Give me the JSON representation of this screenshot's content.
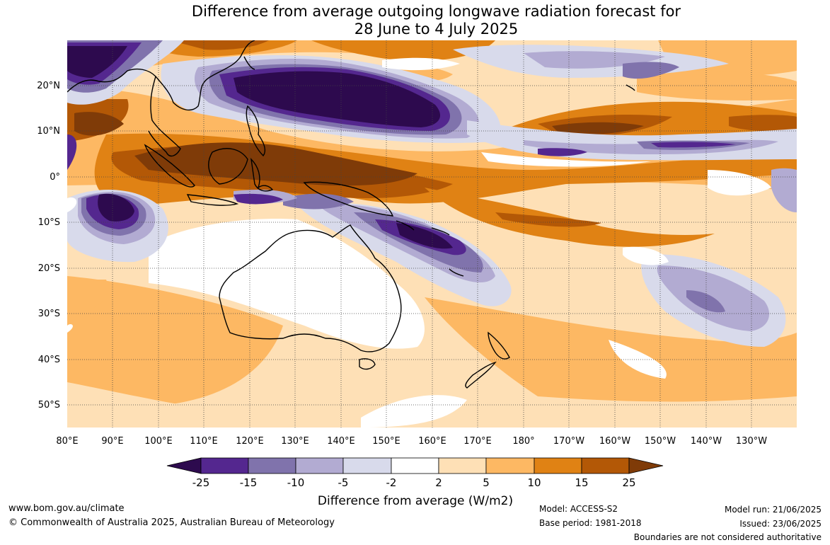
{
  "title_line1": "Difference from average outgoing longwave radiation forecast for",
  "title_line2": "28 June to 4 July 2025",
  "lat_labels": [
    "20°N",
    "10°N",
    "0°",
    "10°S",
    "20°S",
    "30°S",
    "40°S",
    "50°S"
  ],
  "lon_labels": [
    "80°E",
    "90°E",
    "100°E",
    "110°E",
    "120°E",
    "130°E",
    "140°E",
    "150°E",
    "160°E",
    "170°E",
    "180°",
    "170°W",
    "160°W",
    "150°W",
    "140°W",
    "130°W"
  ],
  "legend": {
    "ticks": [
      "-25",
      "-15",
      "-10",
      "-5",
      "-2",
      "2",
      "5",
      "10",
      "15",
      "25"
    ],
    "colors": [
      "#2d0a4e",
      "#54278f",
      "#8073ac",
      "#b2abd2",
      "#d8daeb",
      "#ffffff",
      "#fee0b6",
      "#fdb863",
      "#e08214",
      "#b35806",
      "#7f3b08"
    ],
    "label": "Difference from average (W/m2)"
  },
  "footer": {
    "website": "www.bom.gov.au/climate",
    "copyright": "© Commonwealth of Australia 2025, Australian Bureau of Meteorology",
    "model": "Model: ACCESS-S2",
    "base_period": "Base period: 1981-2018",
    "model_run": "Model run: 21/06/2025",
    "issued": "Issued: 23/06/2025",
    "disclaimer": "Boundaries are not considered authoritative"
  }
}
